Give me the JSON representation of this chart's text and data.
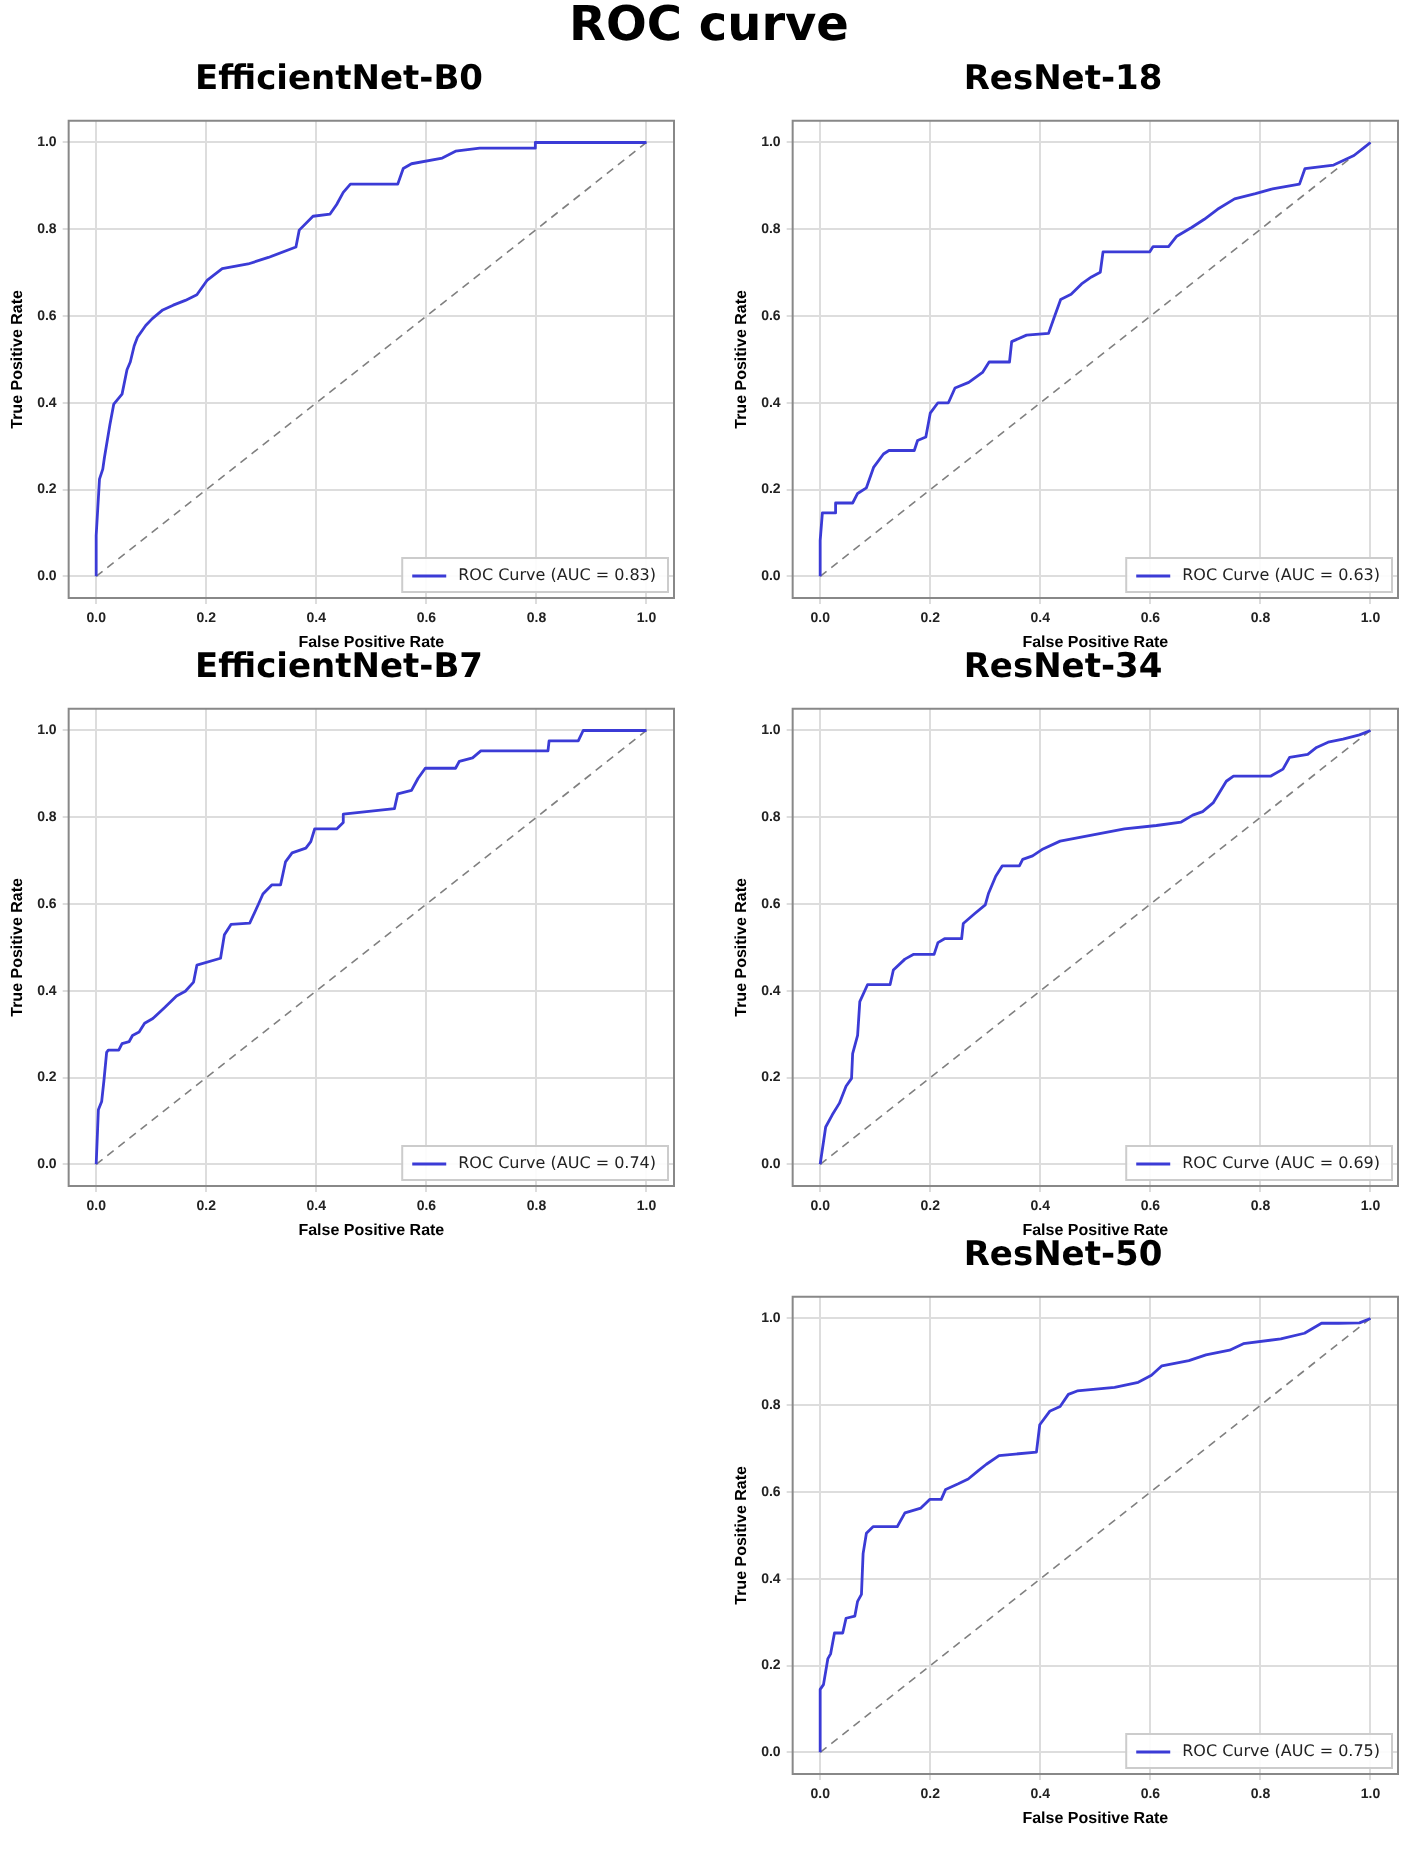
{
  "chart_data": [
    {
      "type": "other",
      "title": "ROC curve"
    },
    {
      "type": "line",
      "title": "EfficientNet-B0",
      "xlabel": "False Positive Rate",
      "ylabel": "True Positive Rate",
      "xlim": [
        -0.05,
        1.05
      ],
      "ylim": [
        -0.05,
        1.05
      ],
      "xticks": [
        {
          "value": 0,
          "label": "0.0"
        },
        {
          "value": 0.2,
          "label": "0.2"
        },
        {
          "value": 0.4,
          "label": "0.4"
        },
        {
          "value": 0.6,
          "label": "0.6"
        },
        {
          "value": 0.8,
          "label": "0.8"
        },
        {
          "value": 1,
          "label": "1.0"
        }
      ],
      "yticks": [
        {
          "value": 0,
          "label": "0.0"
        },
        {
          "value": 0.2,
          "label": "0.2"
        },
        {
          "value": 0.4,
          "label": "0.4"
        },
        {
          "value": 0.6,
          "label": "0.6"
        },
        {
          "value": 0.8,
          "label": "0.8"
        },
        {
          "value": 1,
          "label": "1.0"
        }
      ],
      "grid": true,
      "legend": "bottom right",
      "marker": "none",
      "series": [
        {
          "name": "ROC Curve (AUC = 0.83)",
          "color": "#3b3bd6",
          "x": [
            0,
            0,
            0.006,
            0.012,
            0.015,
            0.025,
            0.032,
            0.047,
            0.056,
            0.062,
            0.069,
            0.075,
            0.09,
            0.102,
            0.121,
            0.14,
            0.162,
            0.183,
            0.202,
            0.229,
            0.276,
            0.313,
            0.363,
            0.369,
            0.394,
            0.425,
            0.437,
            0.449,
            0.462,
            0.548,
            0.558,
            0.573,
            0.629,
            0.653,
            0.697,
            0.796,
            0.798,
            1
          ],
          "values": [
            0,
            0.094,
            0.224,
            0.247,
            0.274,
            0.35,
            0.397,
            0.42,
            0.476,
            0.494,
            0.531,
            0.551,
            0.578,
            0.594,
            0.614,
            0.625,
            0.636,
            0.649,
            0.683,
            0.709,
            0.72,
            0.735,
            0.759,
            0.798,
            0.83,
            0.835,
            0.857,
            0.885,
            0.904,
            0.904,
            0.94,
            0.951,
            0.964,
            0.98,
            0.987,
            0.987,
            1,
            1
          ]
        },
        {
          "color": "#808080",
          "line_style": "dashed",
          "x": [
            0,
            1
          ],
          "values": [
            0,
            1
          ]
        }
      ]
    },
    {
      "type": "line",
      "title": "ResNet-18",
      "xlabel": "False Positive Rate",
      "ylabel": "True Positive Rate",
      "xlim": [
        -0.05,
        1.05
      ],
      "ylim": [
        -0.05,
        1.05
      ],
      "xticks": [
        {
          "value": 0,
          "label": "0.0"
        },
        {
          "value": 0.2,
          "label": "0.2"
        },
        {
          "value": 0.4,
          "label": "0.4"
        },
        {
          "value": 0.6,
          "label": "0.6"
        },
        {
          "value": 0.8,
          "label": "0.8"
        },
        {
          "value": 1,
          "label": "1.0"
        }
      ],
      "yticks": [
        {
          "value": 0,
          "label": "0.0"
        },
        {
          "value": 0.2,
          "label": "0.2"
        },
        {
          "value": 0.4,
          "label": "0.4"
        },
        {
          "value": 0.6,
          "label": "0.6"
        },
        {
          "value": 0.8,
          "label": "0.8"
        },
        {
          "value": 1,
          "label": "1.0"
        }
      ],
      "grid": true,
      "legend": "bottom right",
      "marker": "none",
      "series": [
        {
          "name": "ROC Curve (AUC = 0.63)",
          "color": "#3b3bd6",
          "x": [
            0,
            0,
            0.004,
            0.026,
            0.028,
            0.059,
            0.068,
            0.084,
            0.097,
            0.115,
            0.125,
            0.171,
            0.177,
            0.192,
            0.2,
            0.214,
            0.233,
            0.245,
            0.27,
            0.295,
            0.307,
            0.344,
            0.348,
            0.375,
            0.415,
            0.425,
            0.437,
            0.456,
            0.475,
            0.493,
            0.509,
            0.514,
            0.599,
            0.605,
            0.633,
            0.648,
            0.675,
            0.698,
            0.722,
            0.753,
            0.791,
            0.822,
            0.871,
            0.881,
            0.933,
            0.97,
            0.99,
            1
          ],
          "values": [
            0,
            0.083,
            0.146,
            0.146,
            0.169,
            0.169,
            0.191,
            0.204,
            0.251,
            0.282,
            0.29,
            0.29,
            0.313,
            0.321,
            0.376,
            0.4,
            0.4,
            0.434,
            0.447,
            0.47,
            0.494,
            0.494,
            0.541,
            0.556,
            0.56,
            0.596,
            0.638,
            0.65,
            0.674,
            0.69,
            0.701,
            0.748,
            0.748,
            0.76,
            0.76,
            0.784,
            0.804,
            0.823,
            0.846,
            0.87,
            0.882,
            0.893,
            0.904,
            0.94,
            0.948,
            0.97,
            0.99,
            1
          ]
        },
        {
          "color": "#808080",
          "line_style": "dashed",
          "x": [
            0,
            1
          ],
          "values": [
            0,
            1
          ]
        }
      ]
    },
    {
      "type": "line",
      "title": "EfficientNet-B7",
      "xlabel": "False Positive Rate",
      "ylabel": "True Positive Rate",
      "xlim": [
        -0.05,
        1.05
      ],
      "ylim": [
        -0.05,
        1.05
      ],
      "xticks": [
        {
          "value": 0,
          "label": "0.0"
        },
        {
          "value": 0.2,
          "label": "0.2"
        },
        {
          "value": 0.4,
          "label": "0.4"
        },
        {
          "value": 0.6,
          "label": "0.6"
        },
        {
          "value": 0.8,
          "label": "0.8"
        },
        {
          "value": 1,
          "label": "1.0"
        }
      ],
      "yticks": [
        {
          "value": 0,
          "label": "0.0"
        },
        {
          "value": 0.2,
          "label": "0.2"
        },
        {
          "value": 0.4,
          "label": "0.4"
        },
        {
          "value": 0.6,
          "label": "0.6"
        },
        {
          "value": 0.8,
          "label": "0.8"
        },
        {
          "value": 1,
          "label": "1.0"
        }
      ],
      "grid": true,
      "legend": "bottom right",
      "marker": "none",
      "series": [
        {
          "name": "ROC Curve (AUC = 0.74)",
          "color": "#3b3bd6",
          "x": [
            0,
            0.004,
            0.01,
            0.014,
            0.019,
            0.022,
            0.041,
            0.047,
            0.06,
            0.066,
            0.078,
            0.088,
            0.103,
            0.125,
            0.146,
            0.162,
            0.177,
            0.183,
            0.226,
            0.233,
            0.245,
            0.279,
            0.295,
            0.303,
            0.319,
            0.335,
            0.344,
            0.356,
            0.381,
            0.39,
            0.397,
            0.437,
            0.449,
            0.449,
            0.542,
            0.548,
            0.573,
            0.585,
            0.598,
            0.653,
            0.66,
            0.684,
            0.699,
            0.821,
            0.823,
            0.876,
            0.885,
            1
          ],
          "values": [
            0,
            0.126,
            0.145,
            0.192,
            0.258,
            0.263,
            0.263,
            0.278,
            0.283,
            0.297,
            0.305,
            0.325,
            0.336,
            0.362,
            0.388,
            0.399,
            0.42,
            0.459,
            0.475,
            0.529,
            0.553,
            0.556,
            0.6,
            0.623,
            0.644,
            0.644,
            0.697,
            0.718,
            0.729,
            0.744,
            0.773,
            0.773,
            0.788,
            0.807,
            0.82,
            0.854,
            0.862,
            0.89,
            0.913,
            0.913,
            0.929,
            0.937,
            0.953,
            0.953,
            0.976,
            0.976,
            1,
            1
          ]
        },
        {
          "color": "#808080",
          "line_style": "dashed",
          "x": [
            0,
            1
          ],
          "values": [
            0,
            1
          ]
        }
      ]
    },
    {
      "type": "line",
      "title": "ResNet-34",
      "xlabel": "False Positive Rate",
      "ylabel": "True Positive Rate",
      "xlim": [
        -0.05,
        1.05
      ],
      "ylim": [
        -0.05,
        1.05
      ],
      "xticks": [
        {
          "value": 0,
          "label": "0.0"
        },
        {
          "value": 0.2,
          "label": "0.2"
        },
        {
          "value": 0.4,
          "label": "0.4"
        },
        {
          "value": 0.6,
          "label": "0.6"
        },
        {
          "value": 0.8,
          "label": "0.8"
        },
        {
          "value": 1,
          "label": "1.0"
        }
      ],
      "yticks": [
        {
          "value": 0,
          "label": "0.0"
        },
        {
          "value": 0.2,
          "label": "0.2"
        },
        {
          "value": 0.4,
          "label": "0.4"
        },
        {
          "value": 0.6,
          "label": "0.6"
        },
        {
          "value": 0.8,
          "label": "0.8"
        },
        {
          "value": 1,
          "label": "1.0"
        }
      ],
      "grid": true,
      "legend": "bottom right",
      "marker": "none",
      "series": [
        {
          "name": "ROC Curve (AUC = 0.69)",
          "color": "#3b3bd6",
          "x": [
            0,
            0.01,
            0.022,
            0.035,
            0.047,
            0.057,
            0.059,
            0.068,
            0.072,
            0.086,
            0.127,
            0.133,
            0.154,
            0.17,
            0.207,
            0.214,
            0.226,
            0.257,
            0.26,
            0.281,
            0.3,
            0.306,
            0.319,
            0.331,
            0.362,
            0.368,
            0.386,
            0.405,
            0.436,
            0.491,
            0.553,
            0.611,
            0.656,
            0.677,
            0.695,
            0.714,
            0.738,
            0.751,
            0.819,
            0.841,
            0.853,
            0.886,
            0.902,
            0.923,
            0.95,
            0.98,
            1
          ],
          "values": [
            0,
            0.086,
            0.114,
            0.141,
            0.18,
            0.198,
            0.255,
            0.297,
            0.375,
            0.414,
            0.414,
            0.448,
            0.473,
            0.484,
            0.484,
            0.511,
            0.52,
            0.52,
            0.555,
            0.578,
            0.598,
            0.625,
            0.664,
            0.688,
            0.688,
            0.703,
            0.711,
            0.727,
            0.745,
            0.758,
            0.773,
            0.781,
            0.789,
            0.805,
            0.813,
            0.833,
            0.883,
            0.895,
            0.895,
            0.911,
            0.938,
            0.945,
            0.961,
            0.973,
            0.98,
            0.99,
            1
          ]
        },
        {
          "color": "#808080",
          "line_style": "dashed",
          "x": [
            0,
            1
          ],
          "values": [
            0,
            1
          ]
        }
      ]
    },
    {
      "type": "line",
      "title": "ResNet-50",
      "xlabel": "False Positive Rate",
      "ylabel": "True Positive Rate",
      "xlim": [
        -0.05,
        1.05
      ],
      "ylim": [
        -0.05,
        1.05
      ],
      "xticks": [
        {
          "value": 0,
          "label": "0.0"
        },
        {
          "value": 0.2,
          "label": "0.2"
        },
        {
          "value": 0.4,
          "label": "0.4"
        },
        {
          "value": 0.6,
          "label": "0.6"
        },
        {
          "value": 0.8,
          "label": "0.8"
        },
        {
          "value": 1,
          "label": "1.0"
        }
      ],
      "yticks": [
        {
          "value": 0,
          "label": "0.0"
        },
        {
          "value": 0.2,
          "label": "0.2"
        },
        {
          "value": 0.4,
          "label": "0.4"
        },
        {
          "value": 0.6,
          "label": "0.6"
        },
        {
          "value": 0.8,
          "label": "0.8"
        },
        {
          "value": 1,
          "label": "1.0"
        }
      ],
      "grid": true,
      "legend": "bottom right",
      "marker": "none",
      "series": [
        {
          "name": "ROC Curve (AUC = 0.75)",
          "color": "#3b3bd6",
          "x": [
            0,
            0,
            0.006,
            0.014,
            0.019,
            0.026,
            0.041,
            0.047,
            0.063,
            0.068,
            0.075,
            0.078,
            0.084,
            0.096,
            0.14,
            0.154,
            0.183,
            0.199,
            0.22,
            0.228,
            0.251,
            0.269,
            0.288,
            0.302,
            0.325,
            0.393,
            0.399,
            0.417,
            0.436,
            0.451,
            0.467,
            0.535,
            0.578,
            0.602,
            0.621,
            0.67,
            0.701,
            0.744,
            0.769,
            0.837,
            0.88,
            0.911,
            0.942,
            0.98,
            1
          ],
          "values": [
            0,
            0.145,
            0.156,
            0.216,
            0.227,
            0.275,
            0.275,
            0.309,
            0.314,
            0.348,
            0.364,
            0.458,
            0.505,
            0.52,
            0.52,
            0.552,
            0.563,
            0.583,
            0.583,
            0.606,
            0.619,
            0.63,
            0.65,
            0.664,
            0.684,
            0.692,
            0.755,
            0.786,
            0.797,
            0.825,
            0.833,
            0.841,
            0.853,
            0.869,
            0.891,
            0.903,
            0.916,
            0.927,
            0.942,
            0.953,
            0.966,
            0.989,
            0.989,
            0.99,
            1
          ]
        },
        {
          "color": "#808080",
          "line_style": "dashed",
          "x": [
            0,
            1
          ],
          "values": [
            0,
            1
          ]
        }
      ]
    }
  ]
}
